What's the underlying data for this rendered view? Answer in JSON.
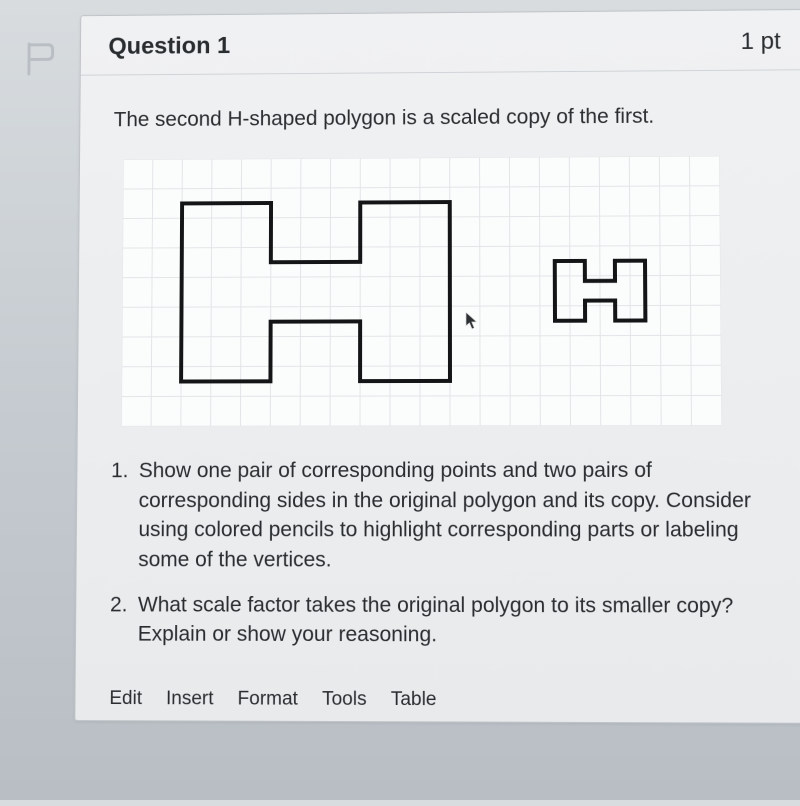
{
  "header": {
    "title": "Question 1",
    "points": "1 pt"
  },
  "body": {
    "intro": "The second H-shaped polygon is a scaled copy of the first.",
    "items": [
      {
        "num": "1.",
        "text": "Show one pair of corresponding points and two pairs of corresponding sides in the original polygon and its copy. Consider using colored pencils to highlight corresponding parts or labeling some of the vertices."
      },
      {
        "num": "2.",
        "text": "What scale factor takes the original polygon to its smaller copy? Explain or show your reasoning."
      }
    ]
  },
  "toolbar": {
    "items": [
      "Edit",
      "Insert",
      "Format",
      "Tools",
      "Table"
    ]
  },
  "diagram": {
    "grid": {
      "cols": 20,
      "rows": 9,
      "cell": 30,
      "stroke": "#e3e5e8",
      "bg": "#fbfcfc"
    },
    "polyA": {
      "stroke": "#141517",
      "stroke_width": 4,
      "fill": "none",
      "points": [
        [
          2,
          1.5
        ],
        [
          5,
          1.5
        ],
        [
          5,
          3.5
        ],
        [
          8,
          3.5
        ],
        [
          8,
          1.5
        ],
        [
          11,
          1.5
        ],
        [
          11,
          7.5
        ],
        [
          8,
          7.5
        ],
        [
          8,
          5.5
        ],
        [
          5,
          5.5
        ],
        [
          5,
          7.5
        ],
        [
          2,
          7.5
        ]
      ]
    },
    "polyB": {
      "stroke": "#141517",
      "stroke_width": 4,
      "fill": "none",
      "points": [
        [
          14.5,
          3.5
        ],
        [
          15.5,
          3.5
        ],
        [
          15.5,
          4.17
        ],
        [
          16.5,
          4.17
        ],
        [
          16.5,
          3.5
        ],
        [
          17.5,
          3.5
        ],
        [
          17.5,
          5.5
        ],
        [
          16.5,
          5.5
        ],
        [
          16.5,
          4.83
        ],
        [
          15.5,
          4.83
        ],
        [
          15.5,
          5.5
        ],
        [
          14.5,
          5.5
        ]
      ]
    }
  },
  "colors": {
    "flag_stroke": "#b8bec4",
    "cursor_fill": "#2d3033"
  }
}
